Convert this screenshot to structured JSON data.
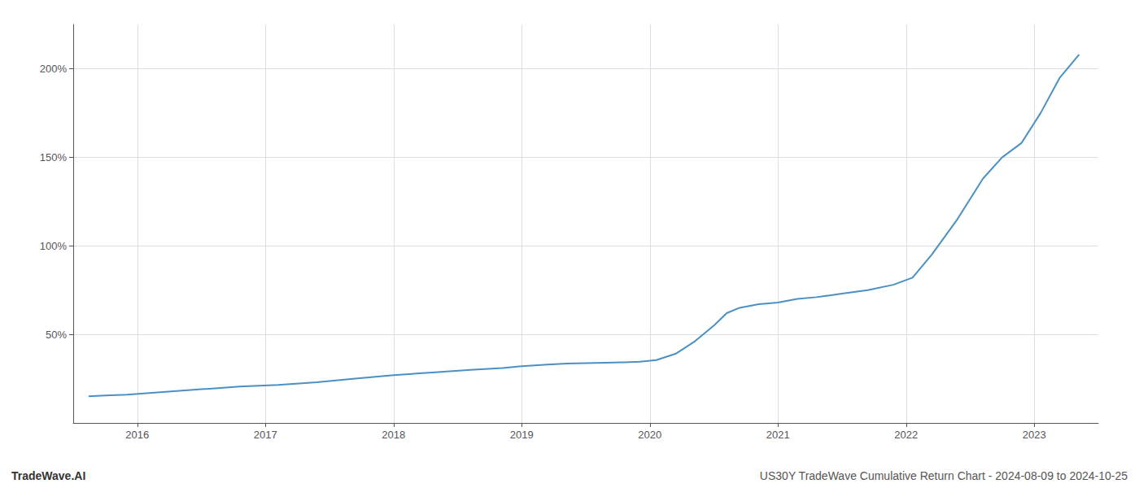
{
  "chart_data": {
    "type": "line",
    "annotations": [
      "TradeWave.AI",
      "US30Y TradeWave Cumulative Return Chart - 2024-08-09 to 2024-10-25"
    ],
    "x": [
      2015.62,
      2015.75,
      2015.92,
      2016.2,
      2016.5,
      2016.8,
      2017.1,
      2017.4,
      2017.7,
      2018.0,
      2018.3,
      2018.6,
      2018.85,
      2019.0,
      2019.1,
      2019.2,
      2019.35,
      2019.5,
      2019.65,
      2019.8,
      2019.92,
      2020.05,
      2020.2,
      2020.35,
      2020.5,
      2020.6,
      2020.7,
      2020.85,
      2021.0,
      2021.15,
      2021.3,
      2021.5,
      2021.7,
      2021.9,
      2022.05,
      2022.2,
      2022.4,
      2022.6,
      2022.75,
      2022.9,
      2023.05,
      2023.2,
      2023.35
    ],
    "values": [
      15,
      15.5,
      16,
      17.5,
      19,
      20.5,
      21.5,
      23,
      25,
      27,
      28.5,
      30,
      31,
      32,
      32.5,
      33,
      33.5,
      33.8,
      34,
      34.2,
      34.5,
      35.5,
      39,
      46,
      55,
      62,
      65,
      67,
      68,
      70,
      71,
      73,
      75,
      78,
      82,
      95,
      115,
      138,
      150,
      158,
      175,
      195,
      208
    ],
    "color": "#4a90c4",
    "xlim": [
      2015.5,
      2023.5
    ],
    "xticks": [
      2016,
      2017,
      2018,
      2019,
      2020,
      2021,
      2022,
      2023
    ],
    "ylim": [
      0,
      225
    ],
    "yticks": [
      {
        "value": 50,
        "label": "50%"
      },
      {
        "value": 100,
        "label": "100%"
      },
      {
        "value": 150,
        "label": "150%"
      },
      {
        "value": 200,
        "label": "200%"
      }
    ],
    "grid": true
  }
}
